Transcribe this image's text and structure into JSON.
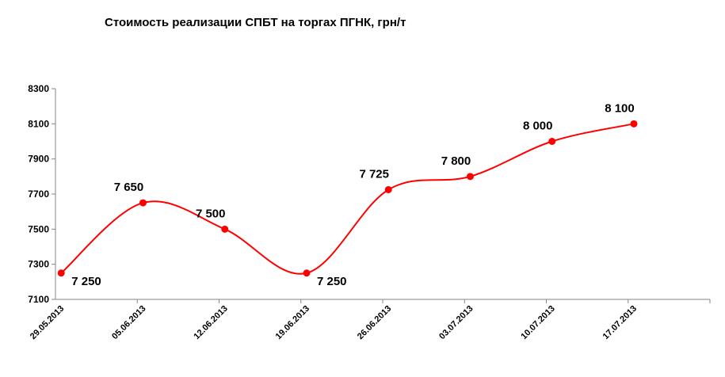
{
  "chart_data": {
    "type": "line",
    "title": "Стоимость реализации СПБТ на торгах ПГНК, грн/т",
    "xlabel": "",
    "ylabel": "",
    "categories": [
      "29.05.2013",
      "05.06.2013",
      "12.06.2013",
      "19.06.2013",
      "26.06.2013",
      "03.07.2013",
      "10.07.2013",
      "17.07.2013"
    ],
    "series": [
      {
        "values": [
          7250,
          7650,
          7500,
          7250,
          7725,
          7800,
          8000,
          8100
        ],
        "data_labels": [
          "7 250",
          "7 650",
          "7 500",
          "7 250",
          "7 725",
          "7 800",
          "8 000",
          "8 100"
        ]
      }
    ],
    "ylim": [
      7100,
      8300
    ],
    "yticks": [
      7100,
      7300,
      7500,
      7700,
      7900,
      8100,
      8300
    ],
    "ytick_labels": [
      "7100",
      "7300",
      "7500",
      "7700",
      "7900",
      "8100",
      "8300"
    ],
    "grid": false,
    "legend": "none",
    "line_style": "smooth",
    "colors": {
      "series": "#ff0000",
      "axis": "#868686",
      "text": "#000000"
    }
  }
}
